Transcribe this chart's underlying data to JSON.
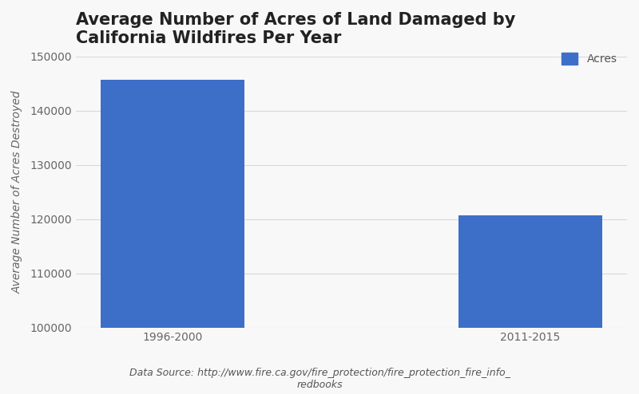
{
  "title": "Average Number of Acres of Land Damaged by\nCalifornia Wildfires Per Year",
  "categories": [
    "1996-2000",
    "2011-2015"
  ],
  "values": [
    145700,
    120700
  ],
  "bar_color": "#3d6fc9",
  "ylabel": "Average Number of Acres Destroyed",
  "ylim": [
    100000,
    150000
  ],
  "yticks": [
    100000,
    110000,
    120000,
    130000,
    140000,
    150000
  ],
  "legend_label": "Acres",
  "caption_line1": "Data Source: http://www.fire.ca.gov/fire_protection/fire_protection_fire_info_",
  "caption_line2": "redbooks",
  "bg_color": "#f8f8f8",
  "grid_color": "#d8d8d8",
  "title_fontsize": 15,
  "ylabel_fontsize": 10,
  "tick_fontsize": 10,
  "caption_fontsize": 9
}
